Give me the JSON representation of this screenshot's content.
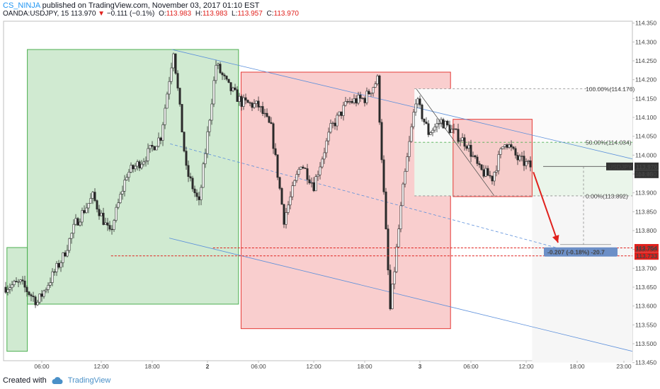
{
  "header": {
    "user": "CS_NINJA",
    "published": "published on TradingView.com, November 03, 2017 01:10 EST",
    "symbol": "OANDA:USDJPY, 15",
    "last": "113.970",
    "change_arrow": "▼",
    "change": "−0.111 (−0.1%)",
    "open_label": "O:",
    "open": "113.983",
    "high_label": "H:",
    "high": "113.983",
    "low_label": "L:",
    "low": "113.957",
    "close_label": "C:",
    "close": "113.970"
  },
  "footer": {
    "created_with": "Created with",
    "brand": "TradingView",
    "icon": "cloud-logo-icon"
  },
  "colors": {
    "green_box_fill": "#c8e6c9",
    "green_box_stroke": "#4caf50",
    "red_box_fill": "#f8c6c6",
    "red_box_stroke": "#e53935",
    "channel": "#5b8fdb",
    "candle": "#2b2b2b",
    "level_red": "#e0211d",
    "projection_label": "#6c8fc7"
  },
  "chart_data": {
    "type": "candlestick",
    "symbol": "USDJPY",
    "interval": "15",
    "ylim": [
      113.455,
      114.355
    ],
    "xlim": [
      0,
      148
    ],
    "y_ticks": [
      "114.350",
      "114.300",
      "114.250",
      "114.200",
      "114.150",
      "114.100",
      "114.050",
      "114.000",
      "113.950",
      "113.900",
      "113.850",
      "113.800",
      "113.750",
      "113.700",
      "113.650",
      "113.600",
      "113.550",
      "113.500",
      "113.450"
    ],
    "x_ticks": [
      {
        "x": 9,
        "label": "06:00"
      },
      {
        "x": 23,
        "label": "12:00"
      },
      {
        "x": 35,
        "label": "18:00"
      },
      {
        "x": 48,
        "label": "2"
      },
      {
        "x": 60,
        "label": "06:00"
      },
      {
        "x": 73,
        "label": "12:00"
      },
      {
        "x": 85,
        "label": "18:00"
      },
      {
        "x": 98,
        "label": "3"
      },
      {
        "x": 110,
        "label": "06:00"
      },
      {
        "x": 123,
        "label": "12:00"
      },
      {
        "x": 135,
        "label": "18:00"
      },
      {
        "x": 146,
        "label": "23:00"
      }
    ],
    "price_path": [
      [
        0,
        113.65
      ],
      [
        4,
        113.66
      ],
      [
        8,
        113.61
      ],
      [
        11,
        113.67
      ],
      [
        14,
        113.73
      ],
      [
        17,
        113.82
      ],
      [
        21,
        113.89
      ],
      [
        25,
        113.79
      ],
      [
        29,
        113.95
      ],
      [
        33,
        113.99
      ],
      [
        37,
        114.05
      ],
      [
        40,
        114.28
      ],
      [
        43,
        113.96
      ],
      [
        46,
        113.87
      ],
      [
        50,
        114.24
      ],
      [
        53,
        114.18
      ],
      [
        56,
        114.14
      ],
      [
        60,
        114.13
      ],
      [
        63,
        114.07
      ],
      [
        66,
        113.83
      ],
      [
        70,
        113.98
      ],
      [
        73,
        113.92
      ],
      [
        77,
        114.07
      ],
      [
        81,
        114.14
      ],
      [
        85,
        114.15
      ],
      [
        88,
        114.2
      ],
      [
        91,
        113.59
      ],
      [
        94,
        113.91
      ],
      [
        97,
        114.15
      ],
      [
        100,
        114.06
      ],
      [
        103,
        114.09
      ],
      [
        106,
        114.06
      ],
      [
        109,
        114.03
      ],
      [
        112,
        113.96
      ],
      [
        115,
        113.94
      ],
      [
        118,
        114.04
      ],
      [
        121,
        113.99
      ],
      [
        124,
        113.97
      ]
    ],
    "shapes": {
      "green_box": {
        "x0": 5.6,
        "x1": 55.3,
        "y0": 114.28,
        "y1": 113.605
      },
      "left_green_box": {
        "x0": 0.8,
        "x1": 5.6,
        "y0": 113.755,
        "y1": 113.48
      },
      "red_box_1": {
        "x0": 55.9,
        "x1": 105.2,
        "y0": 114.22,
        "y1": 113.54
      },
      "red_box_2": {
        "x0": 105.8,
        "x1": 124.4,
        "y0": 114.095,
        "y1": 113.89
      },
      "channel_upper": {
        "x0": 39.6,
        "y0": 114.28,
        "x1": 148,
        "y1": 113.99
      },
      "channel_mid": {
        "x0": 39.2,
        "y0": 114.03,
        "x1": 130,
        "y1": 113.755
      },
      "channel_lower": {
        "x0": 39.0,
        "y0": 113.78,
        "x1": 148,
        "y1": 113.48
      },
      "level_1": {
        "x0": 49.3,
        "price": 113.754,
        "label": "113.754"
      },
      "level_2": {
        "x0": 25.3,
        "price": 113.733,
        "label": "113.733"
      },
      "last_price": {
        "price": 113.97,
        "label": "113.970",
        "symbol": "USDJPY",
        "countdown": "04:48"
      },
      "fib_levels": [
        {
          "label": "100.00%(114.176)",
          "price": 114.176,
          "color": "#8a8a8a"
        },
        {
          "label": "50.00%(114.034)",
          "price": 114.034,
          "color": "#4caf50"
        },
        {
          "label": "0.00%(113.892)",
          "price": 113.892,
          "color": "#8a8a8a"
        }
      ],
      "projection": {
        "label": "-0.207 (-0.18%) -20.7",
        "from_price": 113.97,
        "to_price": 113.763
      }
    }
  }
}
